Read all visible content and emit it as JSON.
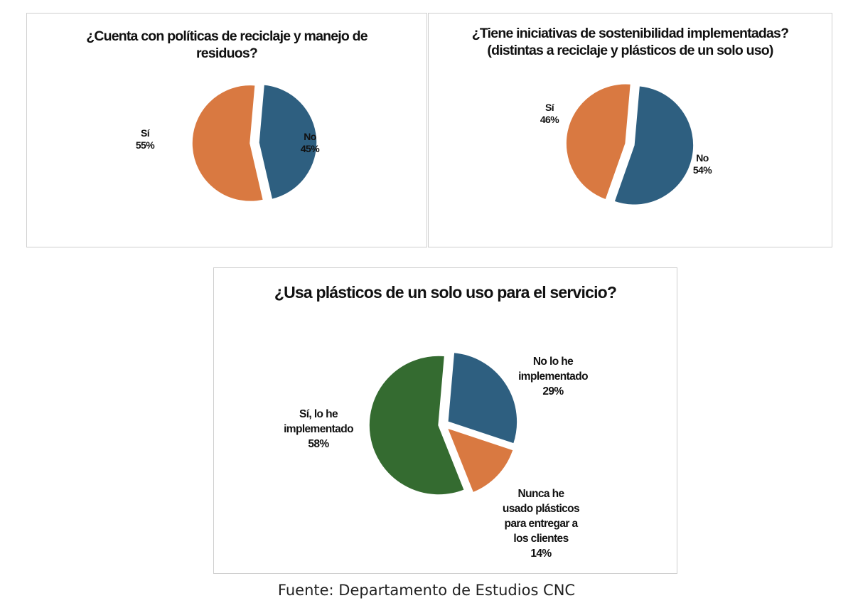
{
  "chart_data": [
    {
      "type": "pie",
      "title": "¿Cuenta con políticas de reciclaje y manejo de residuos?",
      "categories": [
        "No",
        "Sí"
      ],
      "values": [
        45,
        55
      ],
      "value_labels": [
        "45%",
        "55%"
      ],
      "colors": [
        "#2e5f80",
        "#d97941"
      ],
      "legend": "none",
      "exploded": true
    },
    {
      "type": "pie",
      "title": "¿Tiene iniciativas de sostenibilidad implementadas? (distintas a reciclaje y plásticos de un solo uso)",
      "categories": [
        "No",
        "Sí"
      ],
      "values": [
        54,
        46
      ],
      "value_labels": [
        "54%",
        "46%"
      ],
      "colors": [
        "#2e5f80",
        "#d97941"
      ],
      "legend": "none",
      "exploded": true
    },
    {
      "type": "pie",
      "title": "¿Usa plásticos de un solo uso para el servicio?",
      "categories": [
        "No lo he implementado",
        "Nunca he usado plásticos para entregar a los clientes",
        "Sí, lo he implementado"
      ],
      "values": [
        29,
        14,
        58
      ],
      "value_labels": [
        "29%",
        "14%",
        "58%"
      ],
      "colors": [
        "#2e5f80",
        "#d97941",
        "#346b30"
      ],
      "legend": "none",
      "exploded": true
    }
  ],
  "footer": {
    "source": "Fuente: Departamento de Estudios CNC"
  }
}
